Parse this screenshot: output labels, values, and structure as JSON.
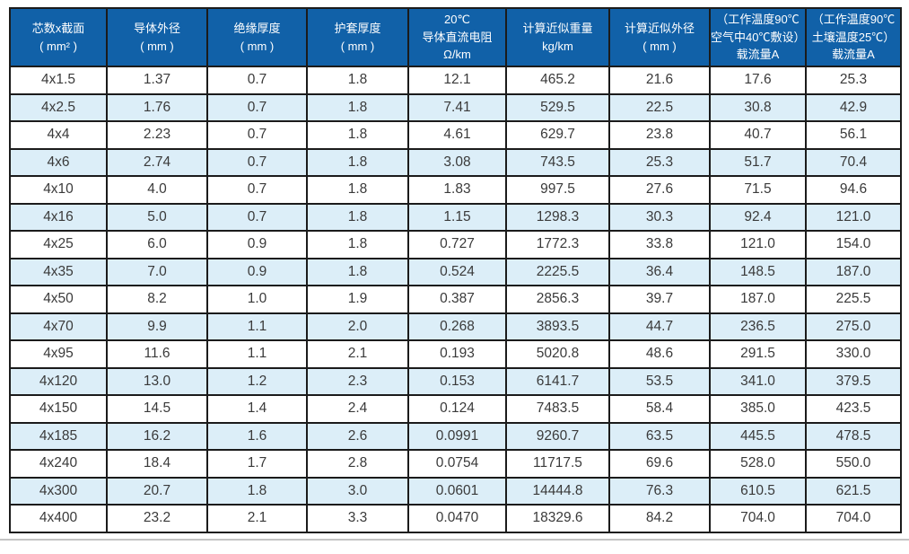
{
  "colors": {
    "header_bg": "#1161a8",
    "header_text": "#ffffff",
    "row_bg": "#ffffff",
    "row_alt_bg": "#dceef8",
    "border": "#1b1b1b",
    "body_text": "#3a3a3a",
    "bottom_divider": "#c3c3c3"
  },
  "table": {
    "headers": [
      {
        "lines": [
          "芯数x截面",
          "( mm² )"
        ]
      },
      {
        "lines": [
          "导体外径",
          "( mm )"
        ]
      },
      {
        "lines": [
          "绝缘厚度",
          "( mm )"
        ]
      },
      {
        "lines": [
          "护套厚度",
          "( mm )"
        ]
      },
      {
        "lines": [
          "20℃",
          "导体直流电阻",
          "Ω/km"
        ]
      },
      {
        "lines": [
          "计算近似重量",
          "kg/km"
        ]
      },
      {
        "lines": [
          "计算近似外径",
          "( mm )"
        ]
      },
      {
        "lines": [
          "（工作温度90℃",
          "空气中40℃敷设）",
          "载流量A"
        ]
      },
      {
        "lines": [
          "（工作温度90℃",
          "土壤温度25℃）",
          "载流量A"
        ]
      }
    ],
    "rows": [
      [
        "4x1.5",
        "1.37",
        "0.7",
        "1.8",
        "12.1",
        "465.2",
        "21.6",
        "17.6",
        "25.3"
      ],
      [
        "4x2.5",
        "1.76",
        "0.7",
        "1.8",
        "7.41",
        "529.5",
        "22.5",
        "30.8",
        "42.9"
      ],
      [
        "4x4",
        "2.23",
        "0.7",
        "1.8",
        "4.61",
        "629.7",
        "23.8",
        "40.7",
        "56.1"
      ],
      [
        "4x6",
        "2.74",
        "0.7",
        "1.8",
        "3.08",
        "743.5",
        "25.3",
        "51.7",
        "70.4"
      ],
      [
        "4x10",
        "4.0",
        "0.7",
        "1.8",
        "1.83",
        "997.5",
        "27.6",
        "71.5",
        "94.6"
      ],
      [
        "4x16",
        "5.0",
        "0.7",
        "1.8",
        "1.15",
        "1298.3",
        "30.3",
        "92.4",
        "121.0"
      ],
      [
        "4x25",
        "6.0",
        "0.9",
        "1.8",
        "0.727",
        "1772.3",
        "33.8",
        "121.0",
        "154.0"
      ],
      [
        "4x35",
        "7.0",
        "0.9",
        "1.8",
        "0.524",
        "2225.5",
        "36.4",
        "148.5",
        "187.0"
      ],
      [
        "4x50",
        "8.2",
        "1.0",
        "1.9",
        "0.387",
        "2856.3",
        "39.7",
        "187.0",
        "225.5"
      ],
      [
        "4x70",
        "9.9",
        "1.1",
        "2.0",
        "0.268",
        "3893.5",
        "44.7",
        "236.5",
        "275.0"
      ],
      [
        "4x95",
        "11.6",
        "1.1",
        "2.1",
        "0.193",
        "5020.8",
        "48.6",
        "291.5",
        "330.0"
      ],
      [
        "4x120",
        "13.0",
        "1.2",
        "2.3",
        "0.153",
        "6141.7",
        "53.5",
        "341.0",
        "379.5"
      ],
      [
        "4x150",
        "14.5",
        "1.4",
        "2.4",
        "0.124",
        "7483.5",
        "58.4",
        "385.0",
        "423.5"
      ],
      [
        "4x185",
        "16.2",
        "1.6",
        "2.6",
        "0.0991",
        "9260.7",
        "63.5",
        "445.5",
        "478.5"
      ],
      [
        "4x240",
        "18.4",
        "1.7",
        "2.8",
        "0.0754",
        "11717.5",
        "69.6",
        "528.0",
        "550.0"
      ],
      [
        "4x300",
        "20.7",
        "1.8",
        "3.0",
        "0.0601",
        "14444.8",
        "76.3",
        "610.5",
        "621.5"
      ],
      [
        "4x400",
        "23.2",
        "2.1",
        "3.3",
        "0.0470",
        "18329.6",
        "84.2",
        "704.0",
        "704.0"
      ]
    ]
  }
}
